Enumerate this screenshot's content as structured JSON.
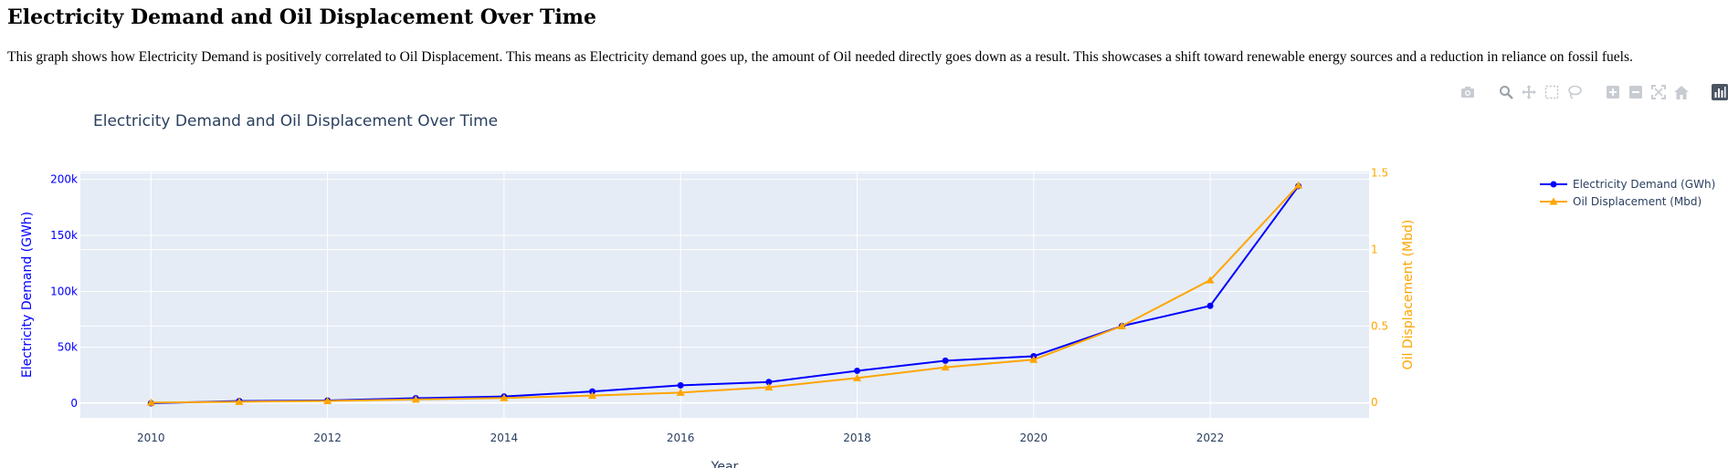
{
  "page": {
    "heading": "Electricity Demand and Oil Displacement Over Time",
    "description": "This graph shows how Electricity Demand is positively correlated to Oil Displacement. This means as Electricity demand goes up, the amount of Oil needed directly goes down as a result. This showcases a shift toward renewable energy sources and a reduction in reliance on fossil fuels."
  },
  "modebar": {
    "buttons": [
      "camera-icon",
      "zoom-icon",
      "pan-icon",
      "box-select-icon",
      "lasso-select-icon",
      "zoom-in-icon",
      "zoom-out-icon",
      "autoscale-icon",
      "reset-axes-icon",
      "plotly-logo-icon"
    ]
  },
  "colors": {
    "electricity": "#0000ff",
    "oil": "#ffa500",
    "plot_bg": "#e5ecf6",
    "grid": "#ffffff",
    "text": "#2a3f5f"
  },
  "chart_data": {
    "type": "line",
    "title": "Electricity Demand and Oil Displacement Over Time",
    "xlabel": "Year",
    "ylabel": "Electricity Demand (GWh)",
    "y2label": "Oil Displacement (Mbd)",
    "x": [
      2010,
      2011,
      2012,
      2013,
      2014,
      2015,
      2016,
      2017,
      2018,
      2019,
      2020,
      2021,
      2022,
      2023
    ],
    "xlim": [
      2009.2,
      2023.8
    ],
    "xticks": [
      2010,
      2012,
      2014,
      2016,
      2018,
      2020,
      2022
    ],
    "xtick_labels": [
      "2010",
      "2012",
      "2014",
      "2016",
      "2018",
      "2020",
      "2022"
    ],
    "ylim": [
      -13000,
      207000
    ],
    "yticks": [
      0,
      50000,
      100000,
      150000,
      200000
    ],
    "ytick_labels": [
      "0",
      "50k",
      "100k",
      "150k",
      "200k"
    ],
    "y2lim": [
      -0.1,
      1.51
    ],
    "y2ticks": [
      0,
      0.5,
      1,
      1.5
    ],
    "y2tick_labels": [
      "0",
      "0.5",
      "1",
      "1.5"
    ],
    "grid": true,
    "legend_position": "top-right",
    "series": [
      {
        "name": "Electricity Demand (GWh)",
        "axis": "y",
        "marker": "circle",
        "values": [
          0,
          2000,
          2500,
          4500,
          6000,
          10500,
          16000,
          19000,
          29000,
          38000,
          42000,
          69000,
          87000,
          194000
        ]
      },
      {
        "name": "Oil Displacement (Mbd)",
        "axis": "y2",
        "marker": "triangle-up",
        "values": [
          0,
          0.005,
          0.01,
          0.02,
          0.03,
          0.045,
          0.065,
          0.1,
          0.16,
          0.23,
          0.28,
          0.5,
          0.8,
          1.42
        ]
      }
    ]
  }
}
